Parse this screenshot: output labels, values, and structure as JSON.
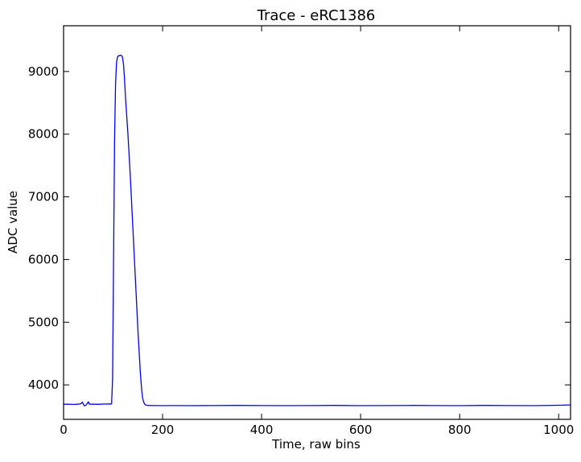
{
  "chart_data": {
    "type": "line",
    "title": "Trace - eRC1386",
    "xlabel": "Time, raw bins",
    "ylabel": "ADC value",
    "xlim": [
      0,
      1024
    ],
    "ylim": [
      3450,
      9730
    ],
    "xticks": [
      0,
      200,
      400,
      600,
      800,
      1000
    ],
    "yticks": [
      4000,
      5000,
      6000,
      7000,
      8000,
      9000
    ],
    "grid": false,
    "legend": "none",
    "series": [
      {
        "color": "#0000ff",
        "x": [
          0,
          10,
          20,
          30,
          35,
          38,
          40,
          42,
          45,
          48,
          50,
          52,
          55,
          60,
          70,
          80,
          90,
          95,
          97,
          99,
          101,
          103,
          105,
          107,
          109,
          111,
          113,
          115,
          117,
          119,
          121,
          123,
          125,
          130,
          135,
          140,
          145,
          150,
          155,
          158,
          160,
          162,
          164,
          166,
          168,
          170,
          180,
          200,
          220,
          250,
          300,
          350,
          400,
          450,
          500,
          550,
          600,
          650,
          700,
          750,
          800,
          850,
          900,
          950,
          1000,
          1024
        ],
        "y": [
          3690,
          3692,
          3688,
          3693,
          3700,
          3725,
          3690,
          3665,
          3675,
          3705,
          3730,
          3695,
          3690,
          3692,
          3690,
          3694,
          3695,
          3695,
          3697,
          4100,
          6000,
          7900,
          8800,
          9150,
          9230,
          9255,
          9250,
          9260,
          9255,
          9230,
          9120,
          8900,
          8600,
          8000,
          7300,
          6500,
          5700,
          4900,
          4200,
          3900,
          3780,
          3720,
          3690,
          3680,
          3675,
          3672,
          3670,
          3668,
          3670,
          3668,
          3670,
          3672,
          3670,
          3668,
          3670,
          3672,
          3668,
          3670,
          3672,
          3670,
          3668,
          3672,
          3670,
          3668,
          3675,
          3680
        ]
      }
    ]
  }
}
